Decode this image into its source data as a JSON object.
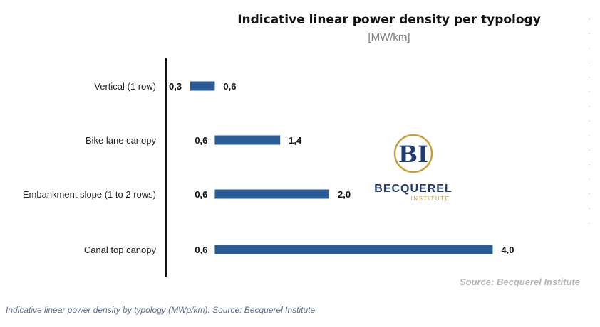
{
  "chart_data": {
    "type": "bar",
    "orientation": "horizontal-range",
    "title": "Indicative linear power density per typology",
    "subtitle": "[MW/km]",
    "categories": [
      "Vertical (1 row)",
      "Bike lane canopy",
      "Embankment slope (1 to 2 rows)",
      "Canal top canopy"
    ],
    "series": [
      {
        "low": [
          0.3,
          0.6,
          0.6,
          0.6
        ],
        "high": [
          0.6,
          1.4,
          2.0,
          4.0
        ],
        "low_labels": [
          "0,3",
          "0,6",
          "0,6",
          "0,6"
        ],
        "high_labels": [
          "0,6",
          "1,4",
          "2,0",
          "4,0"
        ]
      }
    ],
    "xlim": [
      0,
      4.0
    ],
    "grid": false,
    "legend": "none",
    "bar_color": "#2b5c97",
    "source": "Source: Becquerel Institute"
  },
  "logo": {
    "initials": "BI",
    "name": "BECQUEREL",
    "sub": "INSTITUTE",
    "colors": {
      "navy": "#1f3c73",
      "gold": "#c9a038"
    }
  },
  "caption": "Indicative linear power density by typology (MWp/km). Source: Becquerel Institute"
}
